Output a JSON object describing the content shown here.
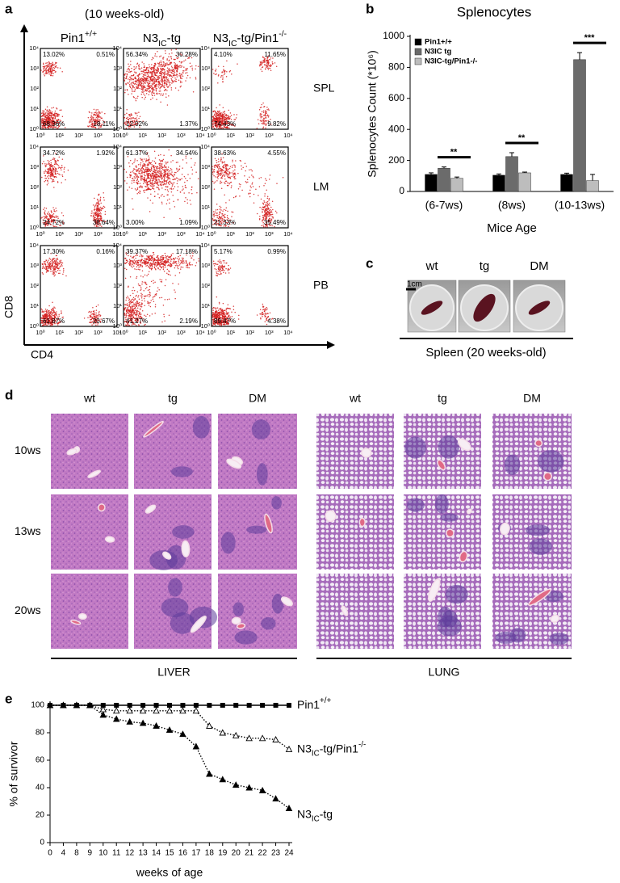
{
  "panel_a": {
    "label": "a",
    "subtitle": "(10 weeks-old)",
    "columns": [
      [
        {
          "t": "Pin1"
        },
        {
          "t": "+/+",
          "s": "sup"
        }
      ],
      [
        {
          "t": "N3"
        },
        {
          "t": "IC",
          "s": "sub"
        },
        {
          "t": "-tg"
        }
      ],
      [
        {
          "t": "N3"
        },
        {
          "t": "IC",
          "s": "sub"
        },
        {
          "t": "-tg/Pin1"
        },
        {
          "t": "-/-",
          "s": "sup"
        }
      ]
    ],
    "rows": [
      {
        "label": "SPL",
        "plots": [
          [
            "13.02%",
            "0.51%",
            "68.36%",
            "18.11%"
          ],
          [
            "56.34%",
            "30.28%",
            "12.02%",
            "1.37%"
          ],
          [
            "4.10%",
            "11.65%",
            "74.43%",
            "9.82%"
          ]
        ]
      },
      {
        "label": "LM",
        "plots": [
          [
            "34.72%",
            "1.92%",
            "24.72%",
            "38.64%"
          ],
          [
            "61.37%",
            "34.54%",
            "3.00%",
            "1.09%"
          ],
          [
            "38.63%",
            "4.55%",
            "21.33%",
            "35.49%"
          ]
        ]
      },
      {
        "label": "PB",
        "plots": [
          [
            "17.30%",
            "0.16%",
            "61.87%",
            "20.67%"
          ],
          [
            "39.37%",
            "17.18%",
            "41.27%",
            "2.19%"
          ],
          [
            "5.17%",
            "0.99%",
            "89.47%",
            "4.38%"
          ]
        ]
      }
    ],
    "y_axis_label": "CD8",
    "x_axis_label": "CD4",
    "ticks": [
      "10⁰",
      "10¹",
      "10²",
      "10³",
      "10⁴"
    ]
  },
  "chart_data": [
    {
      "type": "bar",
      "panel_label": "b",
      "title": "Splenocytes",
      "y_label": "Splenocytes Count (*10⁶)",
      "x_label": "Mice Age",
      "categories": [
        "(6-7ws)",
        "(8ws)",
        "(10-13ws)"
      ],
      "series": [
        {
          "name": "Pin1+/+",
          "color": "#000000",
          "values": [
            110,
            105,
            110
          ],
          "errors": [
            10,
            8,
            8
          ]
        },
        {
          "name": "N3IC tg",
          "color": "#6b6b6b",
          "values": [
            150,
            225,
            850
          ],
          "errors": [
            8,
            25,
            45
          ]
        },
        {
          "name": "N3IC-tg/Pin1-/-",
          "color": "#bdbdbd",
          "values": [
            85,
            120,
            70
          ],
          "errors": [
            8,
            5,
            40
          ]
        }
      ],
      "significance": [
        "**",
        "**",
        "***"
      ],
      "ylim": [
        0,
        1000
      ],
      "yticks": [
        0,
        200,
        400,
        600,
        800,
        1000
      ],
      "legend": "top-left"
    },
    {
      "type": "line",
      "panel_label": "e",
      "y_label": "% of survivor",
      "x_label": "weeks of age",
      "categories": [
        "0",
        "4",
        "8",
        "9",
        "10",
        "11",
        "12",
        "13",
        "14",
        "15",
        "16",
        "17",
        "18",
        "19",
        "20",
        "21",
        "22",
        "23",
        "24"
      ],
      "series": [
        {
          "name": [
            {
              "t": "Pin1"
            },
            {
              "t": "+/+",
              "s": "sup"
            }
          ],
          "color": "#000000",
          "marker": "square",
          "line_style": "solid",
          "values": [
            100,
            100,
            100,
            100,
            100,
            100,
            100,
            100,
            100,
            100,
            100,
            100,
            100,
            100,
            100,
            100,
            100,
            100,
            100
          ]
        },
        {
          "name": [
            {
              "t": "N3"
            },
            {
              "t": "IC",
              "s": "sub"
            },
            {
              "t": "-tg/Pin1"
            },
            {
              "t": "-/-",
              "s": "sup"
            }
          ],
          "color": "#000000",
          "marker": "triangle-open",
          "line_style": "dotted",
          "values": [
            100,
            100,
            100,
            100,
            97,
            96,
            96,
            96,
            96,
            96,
            96,
            96,
            85,
            80,
            78,
            76,
            76,
            75,
            68
          ]
        },
        {
          "name": [
            {
              "t": "N3"
            },
            {
              "t": "IC",
              "s": "sub"
            },
            {
              "t": "-tg"
            }
          ],
          "color": "#000000",
          "marker": "triangle",
          "line_style": "dotted",
          "values": [
            100,
            100,
            100,
            100,
            93,
            90,
            88,
            87,
            85,
            82,
            79,
            70,
            50,
            46,
            42,
            40,
            38,
            32,
            25
          ]
        }
      ],
      "ylim": [
        0,
        100
      ],
      "yticks": [
        0,
        20,
        40,
        60,
        80,
        100
      ]
    }
  ],
  "panel_c": {
    "label": "c",
    "columns": [
      "wt",
      "tg",
      "DM"
    ],
    "scale": "1cm",
    "caption": "Spleen (20 weeks-old)"
  },
  "panel_d": {
    "label": "d",
    "groups": [
      {
        "name": "LIVER",
        "columns": [
          "wt",
          "tg",
          "DM"
        ]
      },
      {
        "name": "LUNG",
        "columns": [
          "wt",
          "tg",
          "DM"
        ]
      }
    ],
    "rows": [
      "10ws",
      "13ws",
      "20ws"
    ]
  }
}
